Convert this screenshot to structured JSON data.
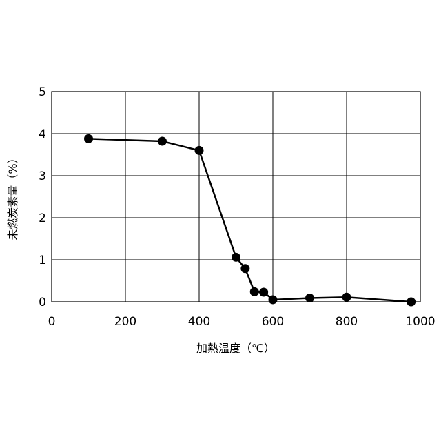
{
  "chart_data": {
    "type": "line",
    "title": "",
    "xlabel": "加熱温度（℃）",
    "ylabel": "未燃炭素量（%）",
    "xlim": [
      0,
      1000
    ],
    "ylim": [
      0,
      5
    ],
    "xticks": [
      "0",
      "200",
      "400",
      "600",
      "800",
      "1000"
    ],
    "yticks": [
      "0",
      "1",
      "2",
      "3",
      "4",
      "5"
    ],
    "grid": true,
    "legend": "none",
    "series": [
      {
        "x": [
          100,
          300,
          400,
          500,
          525,
          550,
          575,
          600,
          700,
          800,
          975
        ],
        "y": [
          3.88,
          3.82,
          3.6,
          1.06,
          0.79,
          0.24,
          0.23,
          0.05,
          0.09,
          0.11,
          0.0
        ],
        "color": "#000000",
        "marker": "circle"
      }
    ]
  }
}
